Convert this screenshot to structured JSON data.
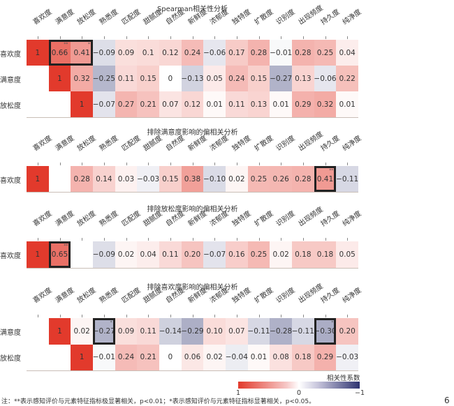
{
  "columns": [
    "喜欢度",
    "满意度",
    "放松度",
    "熟悉度",
    "匹配度",
    "甜腻度",
    "自然度",
    "新鲜度",
    "浓郁度",
    "独特度",
    "扩散度",
    "识别度",
    "出现频度",
    "持久度",
    "纯净度"
  ],
  "chart_data": [
    {
      "type": "heatmap",
      "title": "Spearman相关性分析",
      "rows": [
        "喜欢度",
        "满意度",
        "放松度"
      ],
      "values": [
        [
          1,
          0.66,
          0.41,
          -0.09,
          0.09,
          0.1,
          0.12,
          0.24,
          -0.06,
          0.17,
          0.28,
          -0.01,
          0.28,
          0.25,
          0.04
        ],
        [
          null,
          1,
          0.32,
          -0.25,
          0.11,
          0.15,
          0,
          -0.13,
          0.05,
          0.24,
          0.15,
          -0.27,
          0.13,
          -0.06,
          0.22
        ],
        [
          null,
          null,
          1,
          -0.07,
          0.27,
          0.21,
          0.07,
          0.12,
          0.01,
          0.11,
          0.13,
          0.01,
          0.29,
          0.32,
          0.01
        ]
      ],
      "labels": [
        [
          "1",
          "0.66",
          "0.41",
          "−0.09",
          "0.09",
          "0.1",
          "0.12",
          "0.24",
          "−0.06",
          "0.17",
          "0.28",
          "−0.01",
          "0.28",
          "0.25",
          "0.04"
        ],
        [
          "",
          "1",
          "0.32",
          "−0.25",
          "0.11",
          "0.15",
          "0",
          "−0.13",
          "0.05",
          "0.24",
          "0.15",
          "−0.27",
          "0.13",
          "−0.06",
          "0.22"
        ],
        [
          "",
          "",
          "1",
          "−0.07",
          "0.27",
          "0.21",
          "0.07",
          "0.12",
          "0.01",
          "0.11",
          "0.13",
          "0.01",
          "0.29",
          "0.32",
          "0.01"
        ]
      ],
      "significance": [
        {
          "row": 0,
          "col": 1,
          "mark": "**"
        },
        {
          "row": 0,
          "col": 2,
          "mark": "*"
        }
      ],
      "highlight": [
        {
          "row": 0,
          "from": 1,
          "to": 2
        }
      ]
    },
    {
      "type": "heatmap",
      "title": "排除满意度影响的偏相关分析",
      "rows": [
        "喜欢度"
      ],
      "values": [
        [
          1,
          null,
          0.28,
          0.14,
          0.03,
          -0.03,
          0.15,
          0.38,
          -0.1,
          0.02,
          0.25,
          0.26,
          0.28,
          0.41,
          -0.11
        ]
      ],
      "labels": [
        [
          "1",
          "",
          "0.28",
          "0.14",
          "0.03",
          "−0.03",
          "0.15",
          "0.38",
          "−0.10",
          "0.02",
          "0.25",
          "0.26",
          "0.28",
          "0.41",
          "−0.11"
        ]
      ],
      "significance": [
        {
          "row": 0,
          "col": 13,
          "mark": "**"
        }
      ],
      "highlight": [
        {
          "row": 0,
          "from": 13,
          "to": 13
        }
      ]
    },
    {
      "type": "heatmap",
      "title": "排除放松度影响的偏相关分析",
      "rows": [
        "喜欢度"
      ],
      "values": [
        [
          1,
          0.65,
          null,
          -0.09,
          0.02,
          0.04,
          0.11,
          0.2,
          -0.07,
          0.16,
          0.25,
          0.02,
          0.18,
          0.18,
          0.05
        ]
      ],
      "labels": [
        [
          "1",
          "0.65",
          "",
          "−0.09",
          "0.02",
          "0.04",
          "0.11",
          "0.20",
          "−0.07",
          "0.16",
          "0.25",
          "0.02",
          "0.18",
          "0.18",
          "0.05"
        ]
      ],
      "significance": [
        {
          "row": 0,
          "col": 1,
          "mark": "**"
        }
      ],
      "highlight": [
        {
          "row": 0,
          "from": 1,
          "to": 1
        }
      ]
    },
    {
      "type": "heatmap",
      "title": "排除喜欢度影响的偏相关分析",
      "rows": [
        "满意度",
        "放松度"
      ],
      "values": [
        [
          null,
          1,
          0.02,
          -0.27,
          0.09,
          0.11,
          -0.14,
          -0.29,
          0.1,
          0.07,
          -0.11,
          -0.28,
          -0.11,
          -0.3,
          0.2
        ],
        [
          null,
          null,
          1,
          -0.01,
          0.24,
          0.21,
          0,
          0.06,
          0.02,
          -0.04,
          0.01,
          0.08,
          0.18,
          0.29,
          -0.03
        ]
      ],
      "labels": [
        [
          "",
          "1",
          "0.02",
          "−0.27",
          "0.09",
          "0.11",
          "−0.14",
          "−0.29",
          "0.10",
          "0.07",
          "−0.11",
          "−0.28",
          "−0.11",
          "−0.30",
          "0.20"
        ],
        [
          "",
          "",
          "1",
          "−0.01",
          "0.24",
          "0.21",
          "0",
          "0.06",
          "0.02",
          "−0.04",
          "0.01",
          "0.08",
          "0.18",
          "0.29",
          "−0.03"
        ]
      ],
      "significance": [
        {
          "row": 0,
          "col": 3,
          "mark": "*"
        },
        {
          "row": 0,
          "col": 13,
          "mark": "*"
        }
      ],
      "highlight": [
        {
          "row": 0,
          "from": 3,
          "to": 3
        },
        {
          "row": 0,
          "from": 13,
          "to": 13
        }
      ]
    }
  ],
  "colorbar": {
    "title": "相关性系数",
    "ticks": [
      "1",
      "0",
      "−1"
    ],
    "range": [
      1,
      -1
    ],
    "colors": {
      "pos": "#e23a2c",
      "zero": "#ffffff",
      "neg": "#2f3470"
    }
  },
  "note": "注：**表示感知评价与元素特征指标极显著相关，p<0.01；*表示感知评价与元素特征指标显著相关，p<0.05。",
  "page_number": "6"
}
